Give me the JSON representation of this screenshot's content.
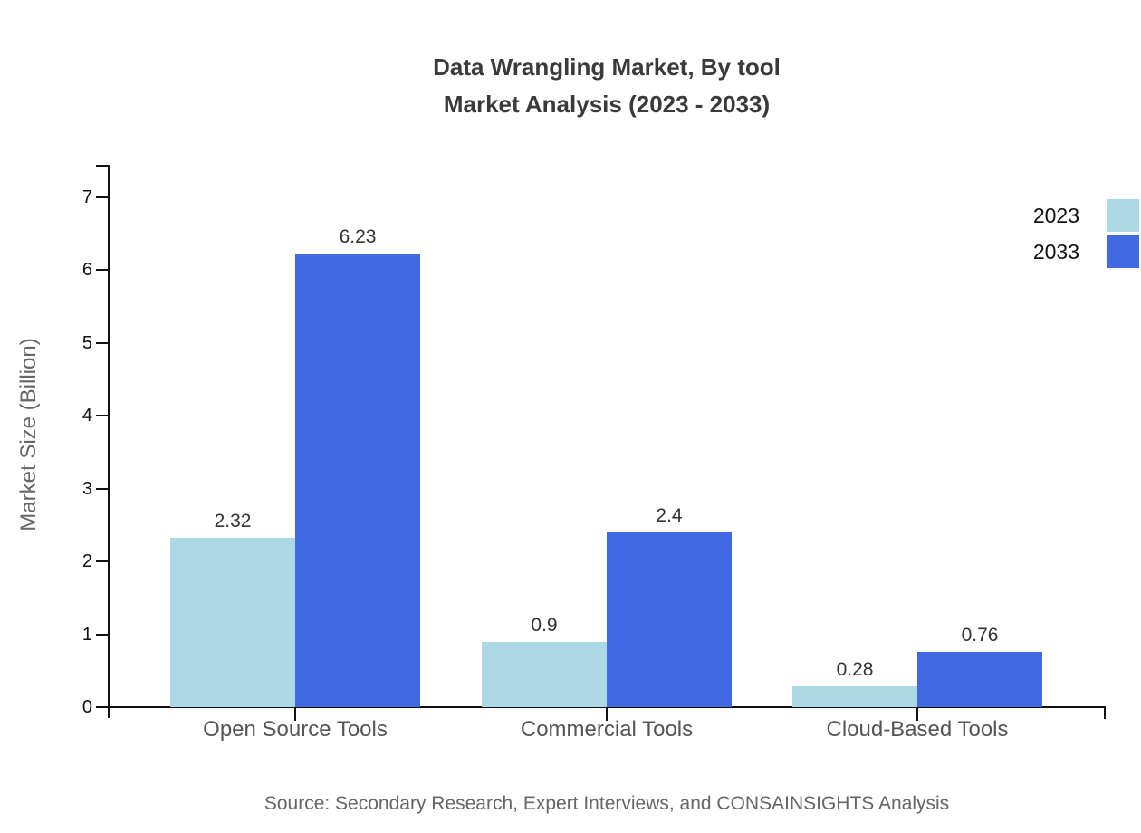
{
  "title": {
    "line1": "Data Wrangling Market, By tool",
    "line2": "Market Analysis (2023 - 2033)"
  },
  "source_note": "Source: Secondary Research, Expert Interviews, and CONSAINSIGHTS Analysis",
  "chart_data": {
    "type": "bar",
    "title": "Data Wrangling Market, By tool — Market Analysis (2023 - 2033)",
    "categories": [
      "Open Source Tools",
      "Commercial Tools",
      "Cloud-Based Tools"
    ],
    "series": [
      {
        "name": "2023",
        "color": "#ADD8E6",
        "values": [
          2.32,
          0.9,
          0.28
        ]
      },
      {
        "name": "2033",
        "color": "#4169E1",
        "values": [
          6.23,
          2.4,
          0.76
        ]
      }
    ],
    "value_labels": [
      "2.32",
      "6.23",
      "0.9",
      "2.4",
      "0.28",
      "0.76"
    ],
    "xlabel": "",
    "ylabel": "Market Size (Billion)",
    "ylim": [
      0,
      7
    ],
    "yticks": [
      0,
      1,
      2,
      3,
      4,
      5,
      6,
      7
    ],
    "grid": false,
    "legend_position": "top-right",
    "axis_color": "#111111"
  }
}
